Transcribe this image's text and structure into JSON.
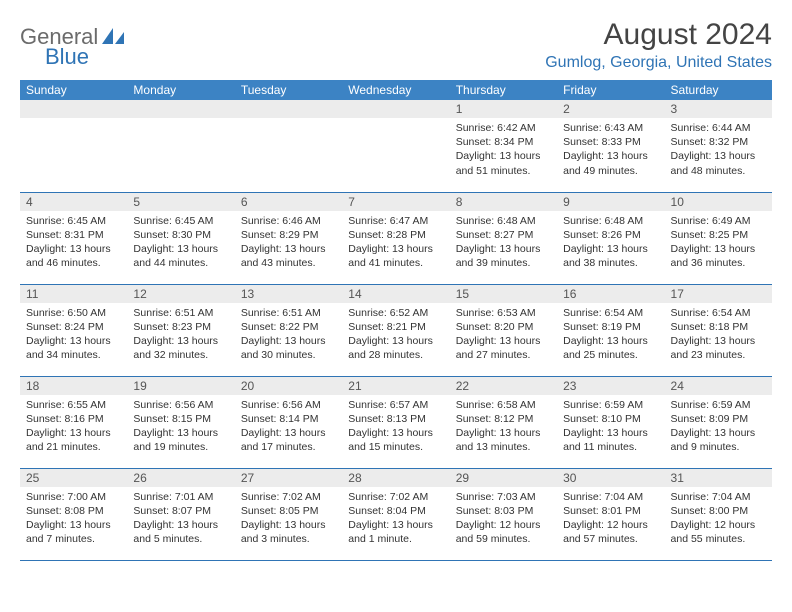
{
  "logo": {
    "text1": "General",
    "text2": "Blue",
    "color1": "#6b6b6b",
    "color2": "#2f74b5"
  },
  "title": "August 2024",
  "location": "Gumlog, Georgia, United States",
  "colors": {
    "header_bg": "#3c83c4",
    "header_fg": "#ffffff",
    "daynum_bg": "#ececec",
    "border": "#2f74b5",
    "title_color": "#444444",
    "location_color": "#2f74b5",
    "text_color": "#333333"
  },
  "fonts": {
    "title_pt": 30,
    "location_pt": 16,
    "header_pt": 12,
    "daynum_pt": 12,
    "body_pt": 10.5
  },
  "day_headers": [
    "Sunday",
    "Monday",
    "Tuesday",
    "Wednesday",
    "Thursday",
    "Friday",
    "Saturday"
  ],
  "weeks": [
    [
      null,
      null,
      null,
      null,
      {
        "num": "1",
        "sunrise": "6:42 AM",
        "sunset": "8:34 PM",
        "daylight": "13 hours and 51 minutes."
      },
      {
        "num": "2",
        "sunrise": "6:43 AM",
        "sunset": "8:33 PM",
        "daylight": "13 hours and 49 minutes."
      },
      {
        "num": "3",
        "sunrise": "6:44 AM",
        "sunset": "8:32 PM",
        "daylight": "13 hours and 48 minutes."
      }
    ],
    [
      {
        "num": "4",
        "sunrise": "6:45 AM",
        "sunset": "8:31 PM",
        "daylight": "13 hours and 46 minutes."
      },
      {
        "num": "5",
        "sunrise": "6:45 AM",
        "sunset": "8:30 PM",
        "daylight": "13 hours and 44 minutes."
      },
      {
        "num": "6",
        "sunrise": "6:46 AM",
        "sunset": "8:29 PM",
        "daylight": "13 hours and 43 minutes."
      },
      {
        "num": "7",
        "sunrise": "6:47 AM",
        "sunset": "8:28 PM",
        "daylight": "13 hours and 41 minutes."
      },
      {
        "num": "8",
        "sunrise": "6:48 AM",
        "sunset": "8:27 PM",
        "daylight": "13 hours and 39 minutes."
      },
      {
        "num": "9",
        "sunrise": "6:48 AM",
        "sunset": "8:26 PM",
        "daylight": "13 hours and 38 minutes."
      },
      {
        "num": "10",
        "sunrise": "6:49 AM",
        "sunset": "8:25 PM",
        "daylight": "13 hours and 36 minutes."
      }
    ],
    [
      {
        "num": "11",
        "sunrise": "6:50 AM",
        "sunset": "8:24 PM",
        "daylight": "13 hours and 34 minutes."
      },
      {
        "num": "12",
        "sunrise": "6:51 AM",
        "sunset": "8:23 PM",
        "daylight": "13 hours and 32 minutes."
      },
      {
        "num": "13",
        "sunrise": "6:51 AM",
        "sunset": "8:22 PM",
        "daylight": "13 hours and 30 minutes."
      },
      {
        "num": "14",
        "sunrise": "6:52 AM",
        "sunset": "8:21 PM",
        "daylight": "13 hours and 28 minutes."
      },
      {
        "num": "15",
        "sunrise": "6:53 AM",
        "sunset": "8:20 PM",
        "daylight": "13 hours and 27 minutes."
      },
      {
        "num": "16",
        "sunrise": "6:54 AM",
        "sunset": "8:19 PM",
        "daylight": "13 hours and 25 minutes."
      },
      {
        "num": "17",
        "sunrise": "6:54 AM",
        "sunset": "8:18 PM",
        "daylight": "13 hours and 23 minutes."
      }
    ],
    [
      {
        "num": "18",
        "sunrise": "6:55 AM",
        "sunset": "8:16 PM",
        "daylight": "13 hours and 21 minutes."
      },
      {
        "num": "19",
        "sunrise": "6:56 AM",
        "sunset": "8:15 PM",
        "daylight": "13 hours and 19 minutes."
      },
      {
        "num": "20",
        "sunrise": "6:56 AM",
        "sunset": "8:14 PM",
        "daylight": "13 hours and 17 minutes."
      },
      {
        "num": "21",
        "sunrise": "6:57 AM",
        "sunset": "8:13 PM",
        "daylight": "13 hours and 15 minutes."
      },
      {
        "num": "22",
        "sunrise": "6:58 AM",
        "sunset": "8:12 PM",
        "daylight": "13 hours and 13 minutes."
      },
      {
        "num": "23",
        "sunrise": "6:59 AM",
        "sunset": "8:10 PM",
        "daylight": "13 hours and 11 minutes."
      },
      {
        "num": "24",
        "sunrise": "6:59 AM",
        "sunset": "8:09 PM",
        "daylight": "13 hours and 9 minutes."
      }
    ],
    [
      {
        "num": "25",
        "sunrise": "7:00 AM",
        "sunset": "8:08 PM",
        "daylight": "13 hours and 7 minutes."
      },
      {
        "num": "26",
        "sunrise": "7:01 AM",
        "sunset": "8:07 PM",
        "daylight": "13 hours and 5 minutes."
      },
      {
        "num": "27",
        "sunrise": "7:02 AM",
        "sunset": "8:05 PM",
        "daylight": "13 hours and 3 minutes."
      },
      {
        "num": "28",
        "sunrise": "7:02 AM",
        "sunset": "8:04 PM",
        "daylight": "13 hours and 1 minute."
      },
      {
        "num": "29",
        "sunrise": "7:03 AM",
        "sunset": "8:03 PM",
        "daylight": "12 hours and 59 minutes."
      },
      {
        "num": "30",
        "sunrise": "7:04 AM",
        "sunset": "8:01 PM",
        "daylight": "12 hours and 57 minutes."
      },
      {
        "num": "31",
        "sunrise": "7:04 AM",
        "sunset": "8:00 PM",
        "daylight": "12 hours and 55 minutes."
      }
    ]
  ],
  "labels": {
    "sunrise": "Sunrise: ",
    "sunset": "Sunset: ",
    "daylight": "Daylight: "
  }
}
